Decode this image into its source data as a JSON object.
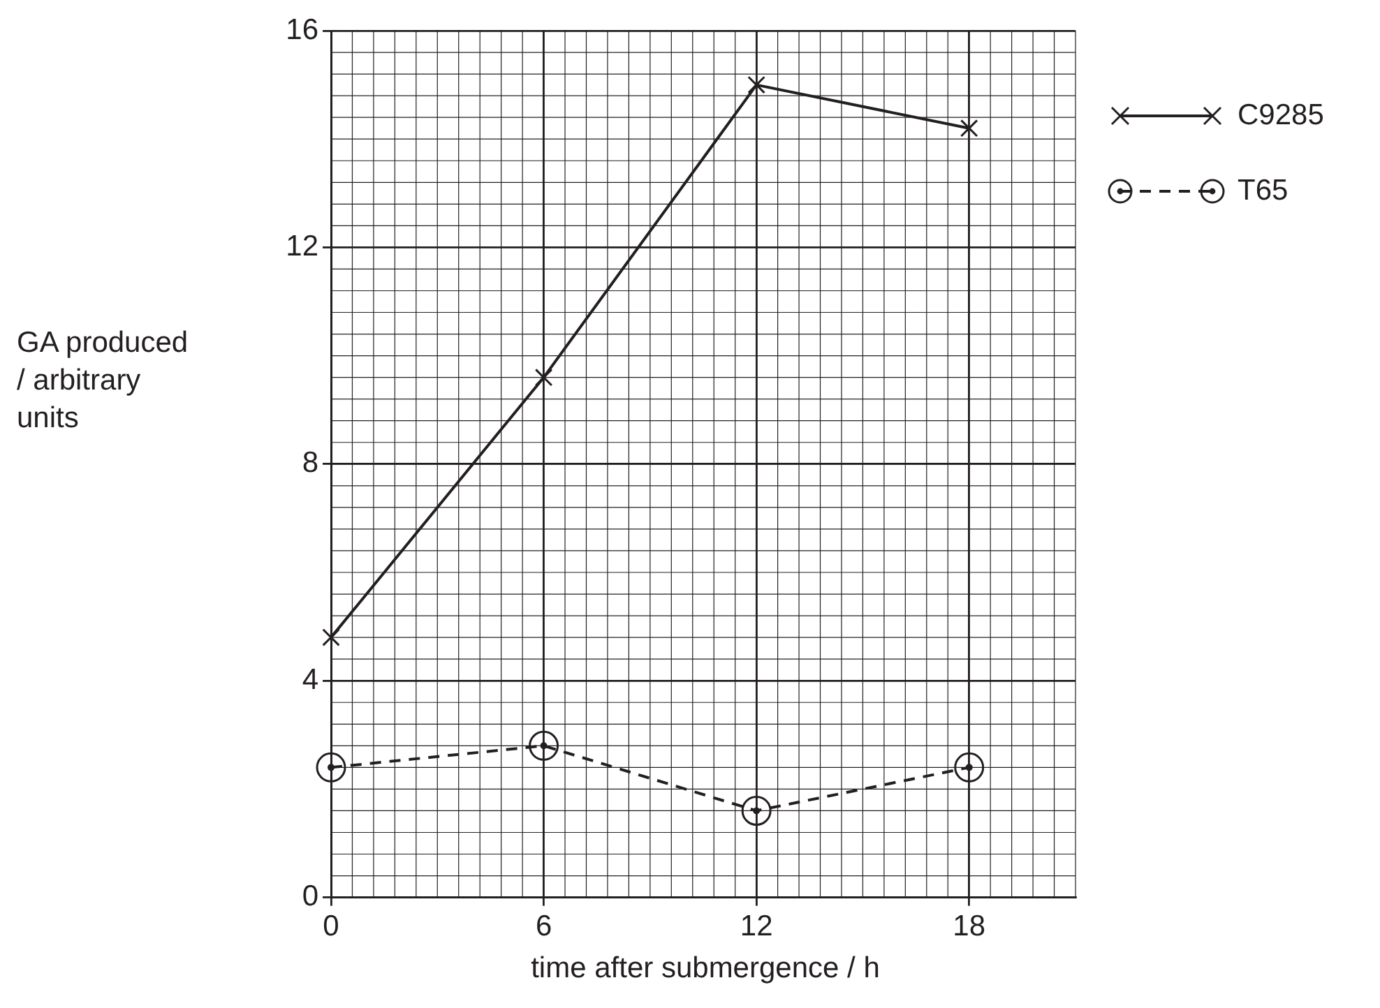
{
  "chart_data": {
    "type": "line",
    "xlabel": "time after submergence / h",
    "ylabel": "GA produced\n/ arbitrary\nunits",
    "x": [
      0,
      6,
      12,
      18
    ],
    "xlim": [
      0,
      21
    ],
    "xticks": [
      0,
      6,
      12,
      18
    ],
    "ylim": [
      0,
      16
    ],
    "yticks": [
      0,
      4,
      8,
      12,
      16
    ],
    "grid": true,
    "legend": "top right",
    "series": [
      {
        "name": "C9285",
        "color": "#231f20",
        "values": [
          4.8,
          9.6,
          15,
          14.2
        ],
        "marker": "cross",
        "line_style": "solid"
      },
      {
        "name": "T65",
        "color": "#231f20",
        "values": [
          2.4,
          2.8,
          1.6,
          2.4
        ],
        "marker": "circle",
        "line_style": "dashed"
      }
    ]
  }
}
